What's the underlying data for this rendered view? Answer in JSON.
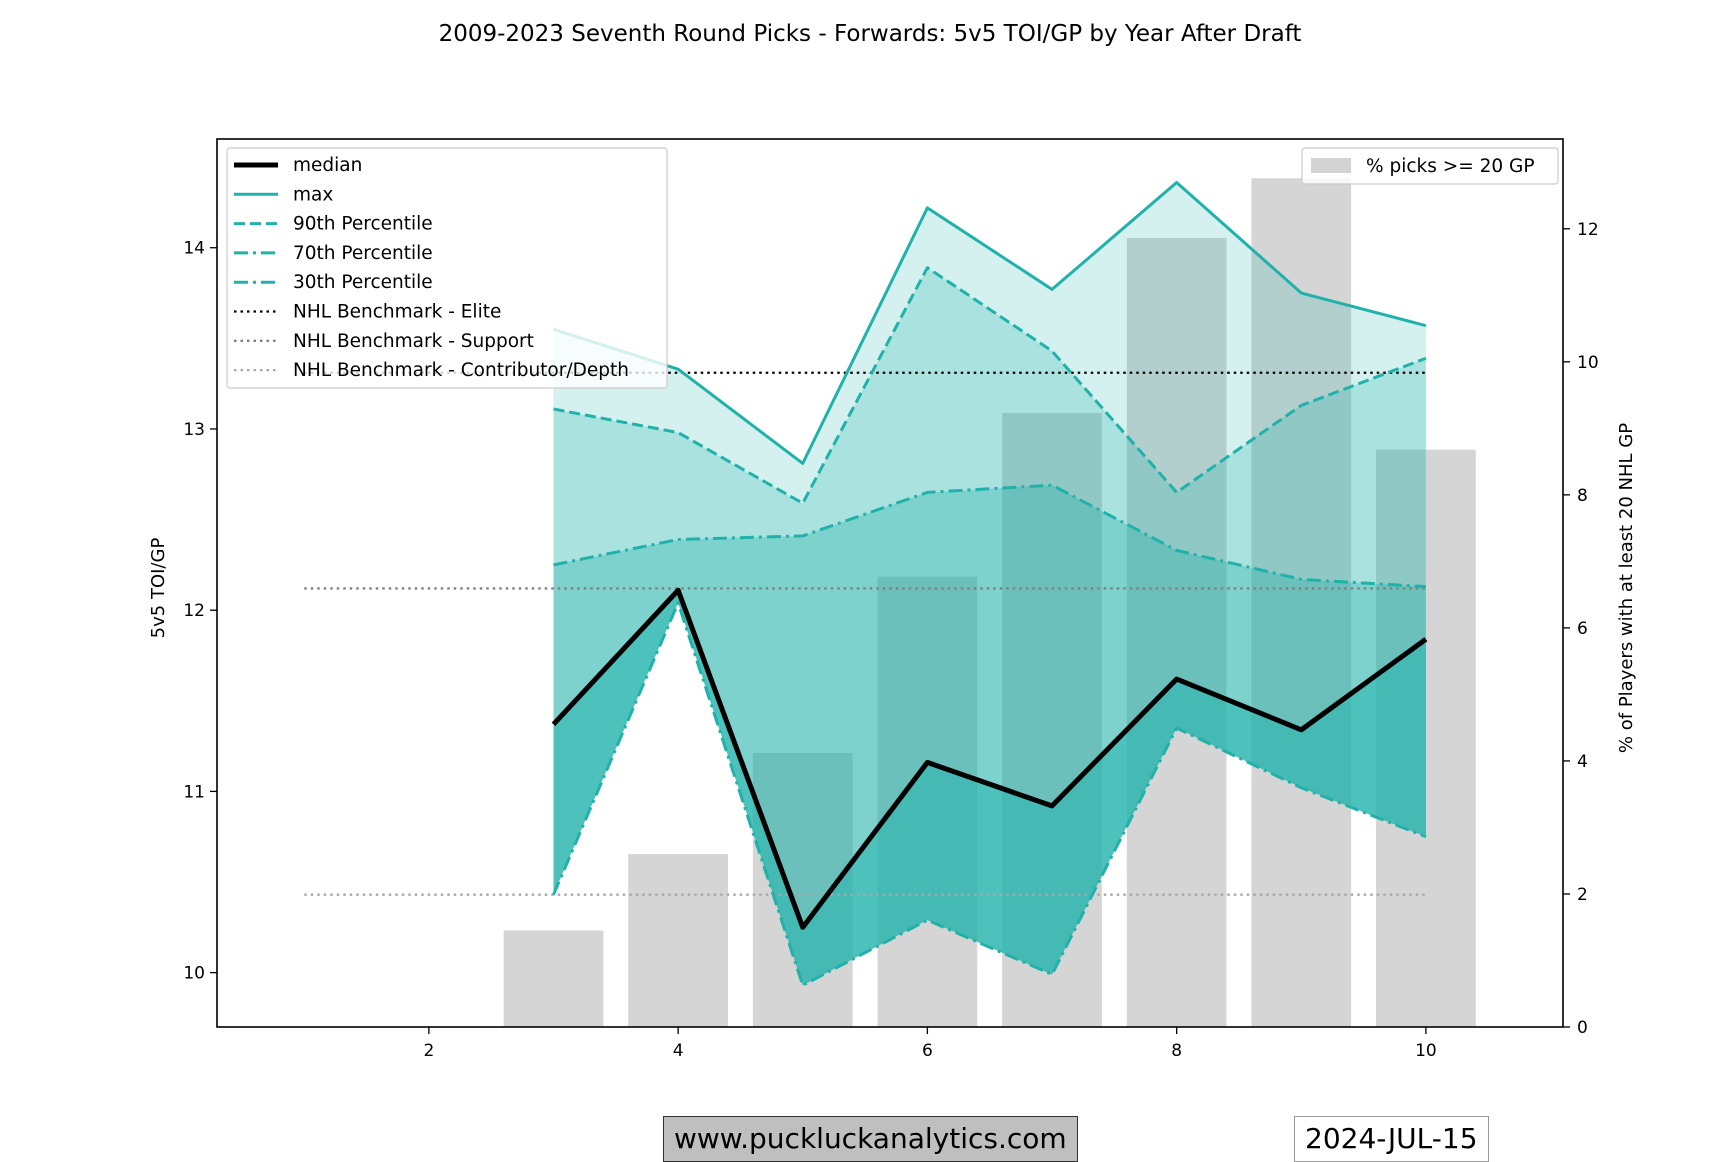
{
  "chart_data": {
    "type": "line",
    "title": "2009-2023 Seventh Round Picks - Forwards: 5v5 TOI/GP by Year After Draft",
    "ylabel_left": "5v5 TOI/GP",
    "ylabel_right": "% of Players with at least 20 NHL GP",
    "xlim": [
      0.3,
      11.1
    ],
    "ylim_left": [
      9.7,
      14.6
    ],
    "ylim_right": [
      0,
      13.35
    ],
    "x_ticks": [
      2,
      4,
      6,
      8,
      10
    ],
    "y_left_ticks": [
      10,
      11,
      12,
      13,
      14
    ],
    "y_right_ticks": [
      0,
      2,
      4,
      6,
      8,
      10,
      12
    ],
    "x": [
      3,
      4,
      5,
      6,
      7,
      8,
      9,
      10
    ],
    "series": [
      {
        "name": "median",
        "values": [
          11.37,
          12.11,
          10.25,
          11.16,
          10.92,
          11.62,
          11.34,
          11.84
        ],
        "color": "#000000",
        "style": "solid"
      },
      {
        "name": "max",
        "values": [
          13.55,
          13.33,
          12.81,
          14.22,
          13.77,
          14.36,
          13.75,
          13.57
        ],
        "color": "#20b2aa",
        "style": "solid"
      },
      {
        "name": "90th Percentile",
        "values": [
          13.11,
          12.98,
          12.59,
          13.89,
          13.43,
          12.65,
          13.13,
          13.39
        ],
        "color": "#20b2aa",
        "style": "dashed"
      },
      {
        "name": "70th Percentile",
        "values": [
          12.25,
          12.39,
          12.41,
          12.65,
          12.69,
          12.33,
          12.17,
          12.13
        ],
        "color": "#20b2aa",
        "style": "dashdot"
      },
      {
        "name": "30th Percentile",
        "values": [
          10.43,
          12.04,
          9.93,
          10.29,
          9.99,
          11.35,
          11.02,
          10.75
        ],
        "color": "#20b2aa",
        "style": "dashdot"
      }
    ],
    "benchmarks": [
      {
        "name": "NHL Benchmark - Elite",
        "value": 13.31,
        "x_range": [
          1,
          10
        ],
        "color": "#000000",
        "style": "dotted"
      },
      {
        "name": "NHL Benchmark - Support",
        "value": 12.12,
        "x_range": [
          1,
          10
        ],
        "color": "#808080",
        "style": "dotted"
      },
      {
        "name": "NHL Benchmark - Contributor/Depth",
        "value": 10.43,
        "x_range": [
          1,
          10
        ],
        "color": "#a8a8a8",
        "style": "dotted"
      }
    ],
    "bars": {
      "name": "% picks >= 20 GP",
      "x": [
        3,
        4,
        5,
        6,
        7,
        8,
        9,
        10
      ],
      "values": [
        1.45,
        2.6,
        4.12,
        6.77,
        9.23,
        11.86,
        12.76,
        8.68
      ],
      "color": "#d3d3d3"
    },
    "legend_left_position": "upper-left",
    "legend_right_position": "upper-right",
    "grid": false
  },
  "footer": {
    "site": "www.puckluckanalytics.com",
    "date": "2024-JUL-15"
  }
}
